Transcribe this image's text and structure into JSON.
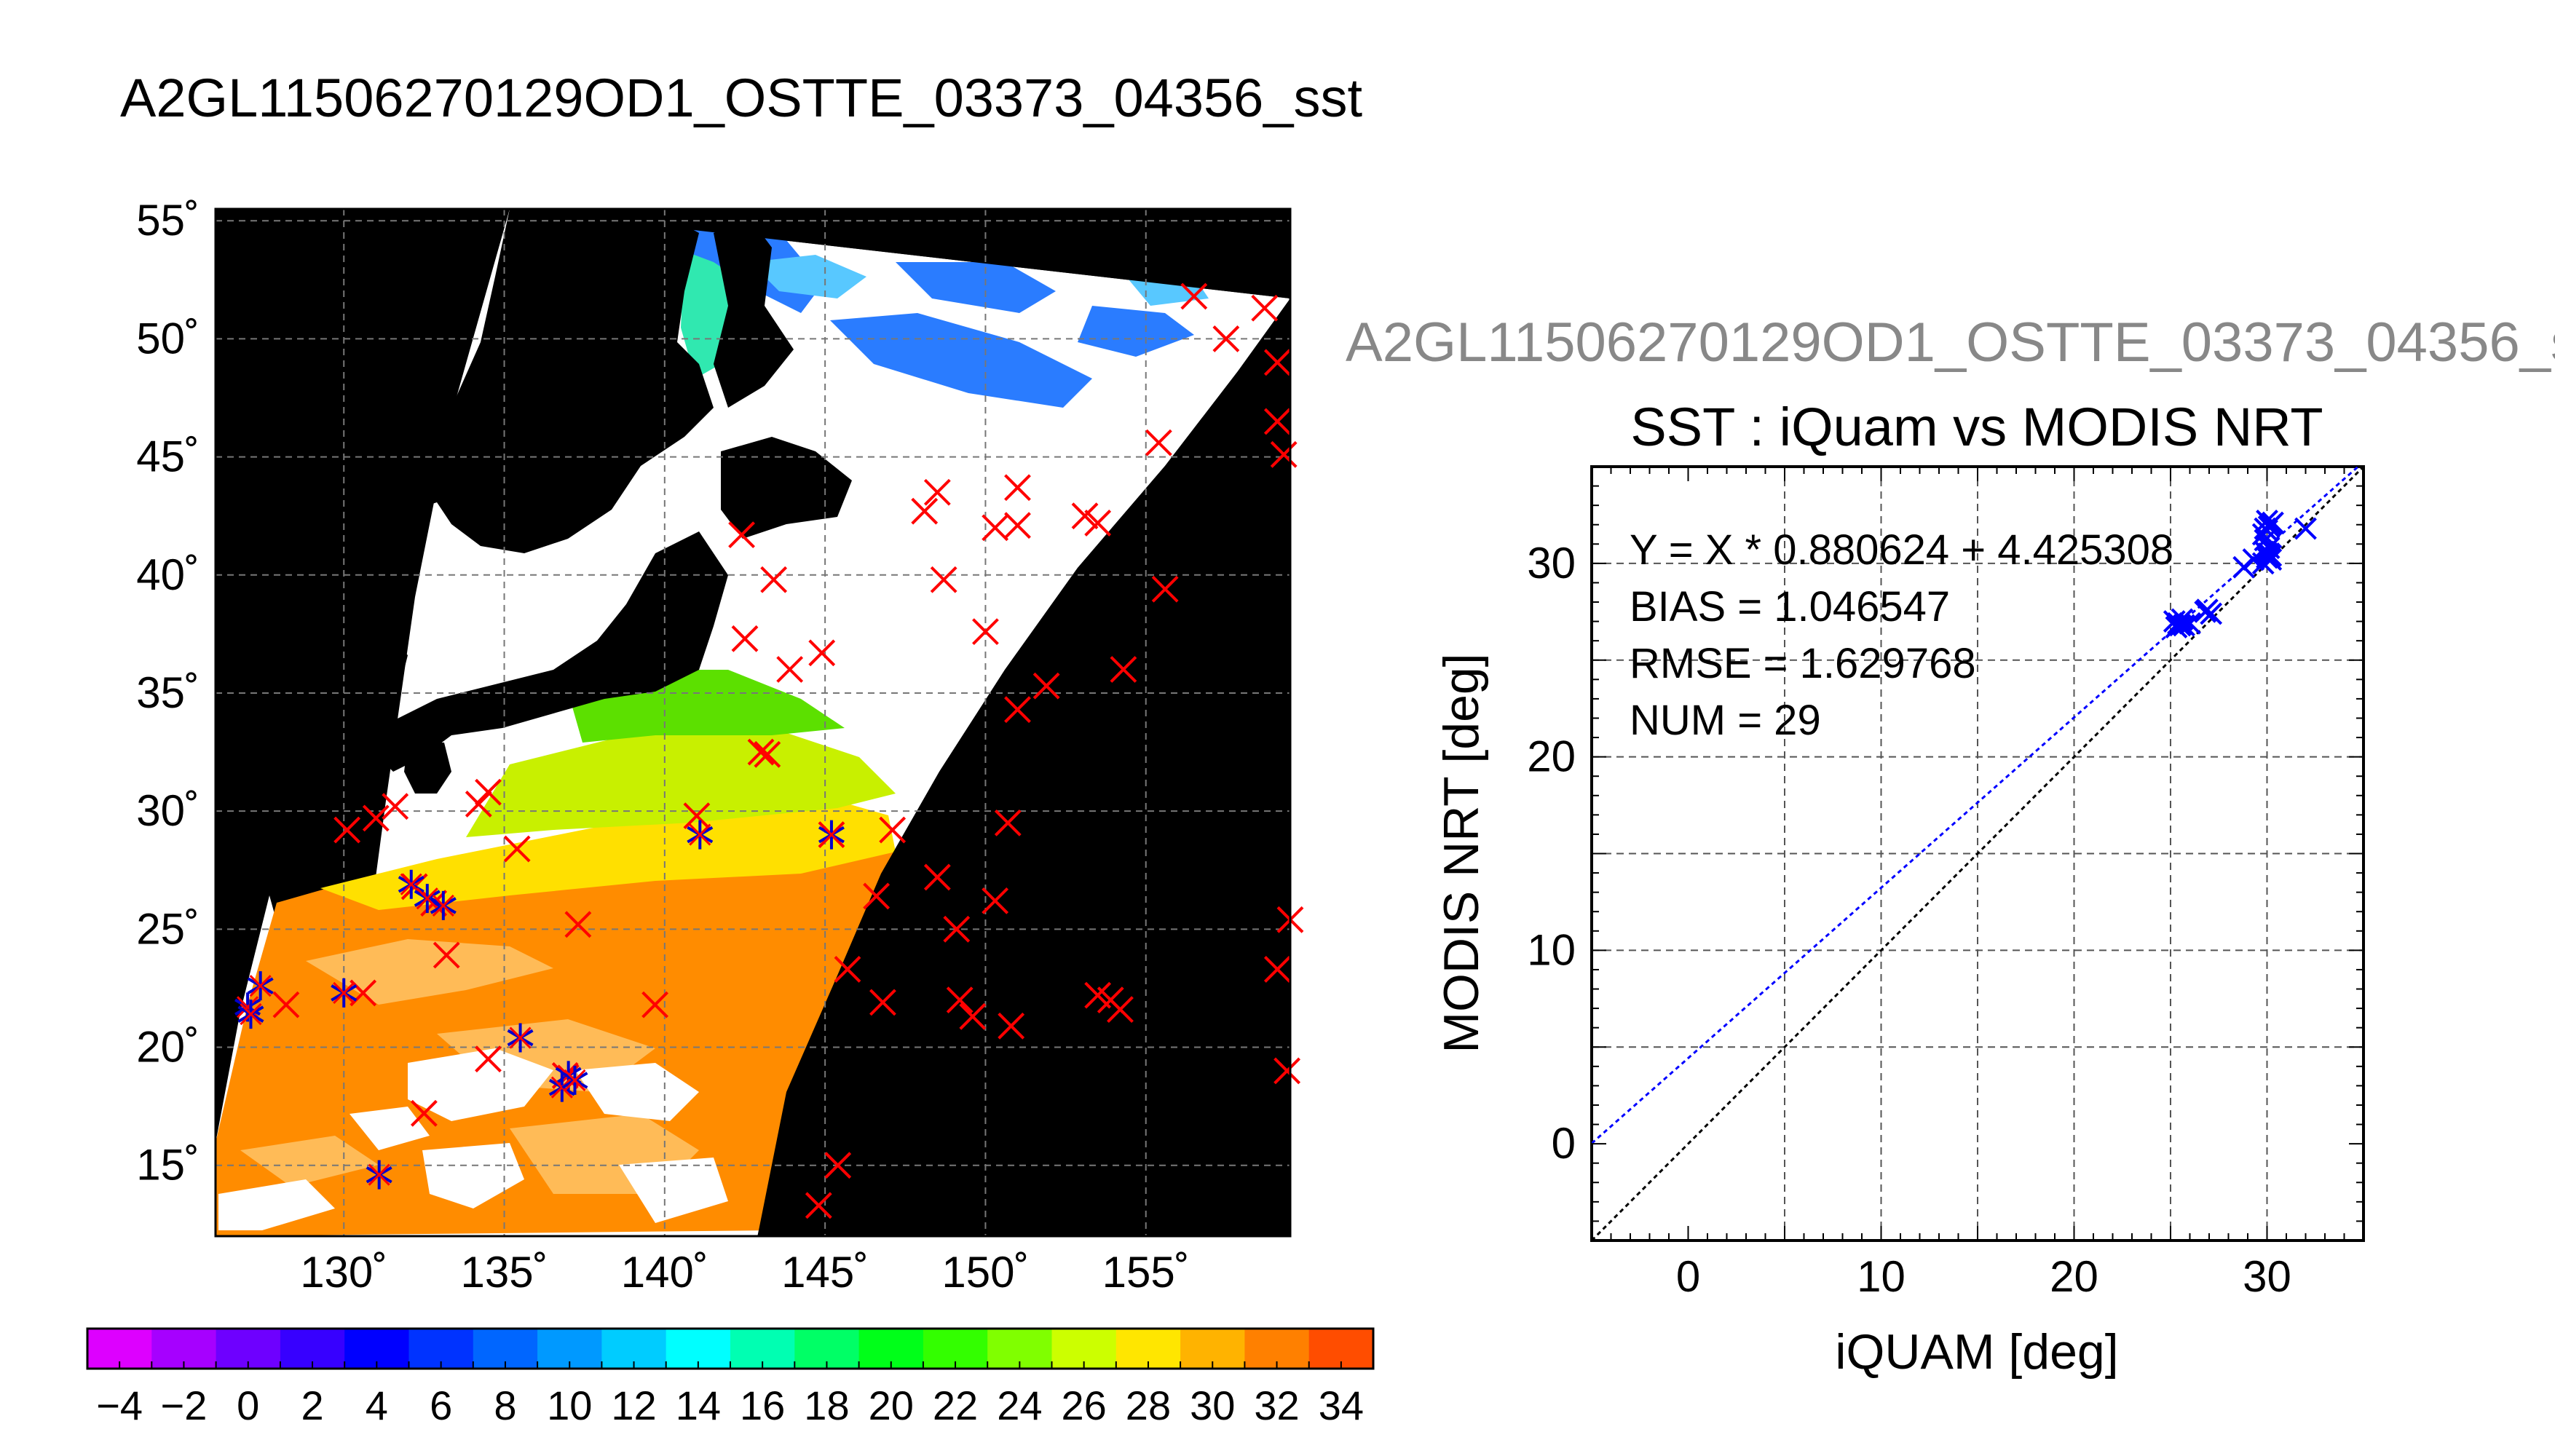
{
  "titles": {
    "main": "A2GL11506270129OD1_OSTTE_03373_04356_sst",
    "right": "A2GL11506270129OD1_OSTTE_03373_04356_s"
  },
  "chart_data": [
    {
      "type": "map",
      "title": "A2GL11506270129OD1_OSTTE_03373_04356_sst",
      "lon_range": [
        126,
        159.5
      ],
      "lat_range": [
        12,
        55.5
      ],
      "lon_ticks": [
        130,
        135,
        140,
        145,
        150,
        155
      ],
      "lon_tick_labels": [
        "130˚",
        "135˚",
        "140˚",
        "145˚",
        "150˚",
        "155˚"
      ],
      "lat_ticks": [
        15,
        20,
        25,
        30,
        35,
        40,
        45,
        50,
        55
      ],
      "lat_tick_labels": [
        "15˚",
        "20˚",
        "25˚",
        "30˚",
        "35˚",
        "40˚",
        "45˚",
        "50˚",
        "55˚"
      ],
      "grid": true,
      "colorbar": {
        "min": -5,
        "max": 35,
        "step": 2,
        "tick_labels": [
          "−4",
          "−2",
          "0",
          "2",
          "4",
          "6",
          "8",
          "10",
          "12",
          "14",
          "16",
          "18",
          "20",
          "22",
          "24",
          "26",
          "28",
          "30",
          "32",
          "34"
        ],
        "colors": [
          "#dd00ff",
          "#a600ff",
          "#6e00ff",
          "#3700ff",
          "#0000ff",
          "#0033ff",
          "#0066ff",
          "#0099ff",
          "#00ccff",
          "#00ffff",
          "#00ffb2",
          "#00ff66",
          "#00ff19",
          "#33ff00",
          "#80ff00",
          "#ccff00",
          "#ffe600",
          "#ffb300",
          "#ff8000",
          "#ff4d00",
          "#ff1a00"
        ]
      },
      "markers_red_x_lonlat": [
        [
          130.1,
          29.2
        ],
        [
          131.0,
          29.7
        ],
        [
          131.6,
          30.2
        ],
        [
          132.2,
          26.8
        ],
        [
          132.8,
          26.1
        ],
        [
          133.2,
          23.9
        ],
        [
          134.2,
          30.3
        ],
        [
          134.5,
          30.8
        ],
        [
          135.4,
          28.4
        ],
        [
          136.9,
          18.8
        ],
        [
          137.3,
          25.2
        ],
        [
          134.5,
          19.5
        ],
        [
          132.5,
          17.2
        ],
        [
          141.0,
          29.8
        ],
        [
          142.4,
          41.7
        ],
        [
          143.4,
          39.8
        ],
        [
          142.5,
          37.3
        ],
        [
          143.0,
          32.5
        ],
        [
          143.2,
          32.4
        ],
        [
          143.9,
          36.0
        ],
        [
          144.9,
          36.7
        ],
        [
          145.7,
          23.3
        ],
        [
          145.4,
          15.0
        ],
        [
          144.8,
          13.3
        ],
        [
          145.2,
          29.0
        ],
        [
          146.6,
          26.4
        ],
        [
          147.1,
          29.2
        ],
        [
          146.8,
          21.9
        ],
        [
          148.5,
          27.2
        ],
        [
          149.1,
          25.0
        ],
        [
          149.2,
          22.0
        ],
        [
          149.6,
          21.3
        ],
        [
          150.3,
          26.2
        ],
        [
          150.7,
          29.5
        ],
        [
          150.8,
          20.9
        ],
        [
          151.0,
          34.3
        ],
        [
          151.9,
          35.3
        ],
        [
          150.0,
          37.6
        ],
        [
          148.1,
          42.7
        ],
        [
          148.5,
          43.5
        ],
        [
          148.7,
          39.8
        ],
        [
          150.3,
          42.0
        ],
        [
          151.0,
          42.1
        ],
        [
          151.0,
          43.7
        ],
        [
          153.1,
          42.5
        ],
        [
          153.5,
          42.2
        ],
        [
          154.3,
          36.0
        ],
        [
          155.6,
          39.4
        ],
        [
          155.4,
          45.6
        ],
        [
          156.5,
          51.8
        ],
        [
          157.5,
          50.0
        ],
        [
          158.7,
          51.3
        ],
        [
          159.1,
          49.0
        ],
        [
          159.1,
          46.5
        ],
        [
          159.3,
          45.1
        ],
        [
          159.1,
          23.3
        ],
        [
          159.5,
          25.4
        ],
        [
          159.4,
          19.0
        ],
        [
          153.5,
          22.2
        ],
        [
          153.9,
          22.0
        ],
        [
          154.2,
          21.6
        ],
        [
          128.2,
          21.8
        ],
        [
          130.6,
          22.3
        ],
        [
          139.7,
          21.8
        ]
      ],
      "markers_blue_star_lonlat": [
        [
          127.4,
          22.6
        ],
        [
          127.0,
          21.7
        ],
        [
          127.1,
          21.4
        ],
        [
          130.0,
          22.3
        ],
        [
          132.1,
          26.9
        ],
        [
          132.6,
          26.3
        ],
        [
          133.1,
          26.0
        ],
        [
          131.1,
          14.6
        ],
        [
          135.5,
          20.4
        ],
        [
          137.0,
          18.8
        ],
        [
          136.8,
          18.3
        ],
        [
          137.2,
          18.6
        ],
        [
          141.1,
          29.0
        ],
        [
          145.2,
          29.0
        ]
      ]
    },
    {
      "type": "scatter",
      "title": "SST : iQuam vs MODIS NRT",
      "xlabel": "iQUAM [deg]",
      "ylabel": "MODIS NRT [deg]",
      "xlim": [
        -5,
        35
      ],
      "ylim": [
        -5,
        35
      ],
      "xticks": [
        0,
        10,
        20,
        30
      ],
      "yticks": [
        0,
        10,
        20,
        30
      ],
      "grid": true,
      "annotations": [
        "Y = X * 0.880624 + 4.425308",
        "BIAS = 1.046547",
        "RMSE = 1.629768",
        "NUM = 29"
      ],
      "fit_line": {
        "slope": 0.880624,
        "intercept": 4.425308,
        "color": "#0000ff",
        "dashed": true
      },
      "identity_line": {
        "color": "#000000",
        "dashed": true
      },
      "points": [
        [
          25.2,
          27.0
        ],
        [
          25.4,
          26.9
        ],
        [
          25.6,
          27.1
        ],
        [
          25.7,
          26.8
        ],
        [
          25.5,
          26.8
        ],
        [
          26.9,
          27.6
        ],
        [
          27.1,
          27.4
        ],
        [
          26.8,
          27.5
        ],
        [
          28.8,
          29.8
        ],
        [
          29.3,
          30.2
        ],
        [
          29.8,
          30.0
        ],
        [
          30.0,
          30.5
        ],
        [
          30.2,
          30.4
        ],
        [
          30.1,
          30.8
        ],
        [
          29.9,
          31.2
        ],
        [
          30.0,
          31.7
        ],
        [
          30.2,
          32.0
        ],
        [
          30.0,
          32.2
        ],
        [
          30.1,
          31.9
        ],
        [
          29.9,
          31.8
        ],
        [
          30.3,
          32.1
        ],
        [
          32.0,
          31.8
        ],
        [
          30.0,
          30.3
        ],
        [
          29.9,
          30.6
        ],
        [
          30.2,
          30.2
        ],
        [
          25.3,
          26.7
        ],
        [
          26.0,
          26.9
        ],
        [
          29.8,
          31.5
        ],
        [
          30.1,
          30.5
        ]
      ]
    }
  ]
}
